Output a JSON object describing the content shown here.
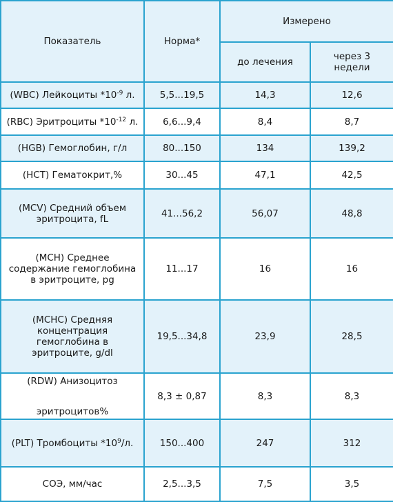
{
  "header": {
    "indicator": "Показатель",
    "norm": "Норма*",
    "measured": "Измерено",
    "before": "до лечения",
    "after": "через 3 недели"
  },
  "rows": [
    {
      "name_pre": "(WBC) Лейкоциты *10",
      "sup": "-9",
      "name_post": " л.",
      "norm": "5,5...19,5",
      "before": "14,3",
      "after": "12,6"
    },
    {
      "name_pre": "(RBC) Эритроциты *10",
      "sup": "-12",
      "name_post": " л.",
      "norm": "6,6...9,4",
      "before": "8,4",
      "after": "8,7"
    },
    {
      "name": "(HGB) Гемоглобин, г/л",
      "norm": "80...150",
      "before": "134",
      "after": "139,2"
    },
    {
      "name": "(HCT) Гематокрит,%",
      "norm": "30...45",
      "before": "47,1",
      "after": "42,5"
    },
    {
      "name": "(MCV) Средний объем эритроцита, fL",
      "norm": "41...56,2",
      "before": "56,07",
      "after": "48,8"
    },
    {
      "name": "(MCH) Среднее содержание гемоглобина в эритроците, pg",
      "norm": "11...17",
      "before": "16",
      "after": "16"
    },
    {
      "name": "(MCHC) Средняя концентрация гемоглобина в эритроците, g/dl",
      "norm": "19,5...34,8",
      "before": "23,9",
      "after": "28,5"
    },
    {
      "name_line1": "(RDW) Анизоцитоз",
      "name_line2": "эритроцитов%",
      "norm": "8,3 ± 0,87",
      "before": "8,3",
      "after": "8,3"
    },
    {
      "name_pre": "(PLT) Тромбоциты *10",
      "sup": "9",
      "name_post": "/л.",
      "norm": "150...400",
      "before": "247",
      "after": "312"
    },
    {
      "name": "СОЭ, мм/час",
      "norm": "2,5...3,5",
      "before": "7,5",
      "after": "3,5"
    }
  ]
}
